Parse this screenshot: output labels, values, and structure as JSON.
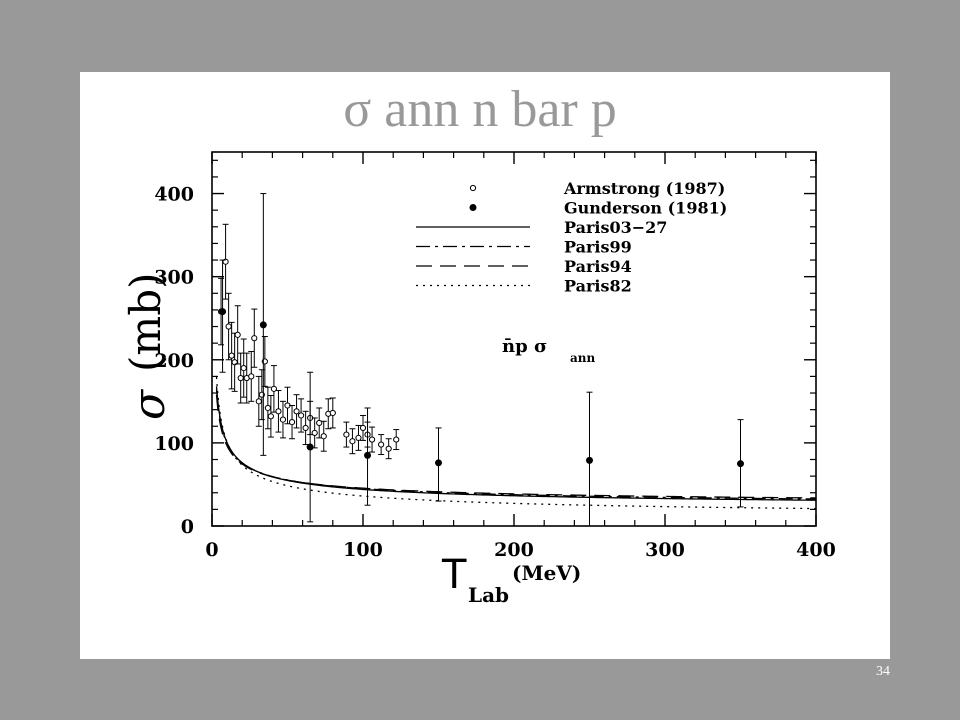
{
  "slide": {
    "title": "σ ann n bar p",
    "number": "34"
  },
  "chart_data": {
    "type": "scatter",
    "xlabel": "T",
    "xlabel_sub": "Lab",
    "xlabel_unit": "(MeV)",
    "ylabel_symbol": "σ",
    "ylabel_unit": "(mb)",
    "xlim": [
      0,
      400
    ],
    "ylim": [
      0,
      450
    ],
    "xticks": [
      0,
      100,
      200,
      300,
      400
    ],
    "yticks": [
      0,
      100,
      200,
      300,
      400
    ],
    "grid": false,
    "legend_position": "top-right",
    "annotation": {
      "main": "n̄p  σ",
      "sub": "ann"
    },
    "series": [
      {
        "name": "Armstrong (1987)",
        "kind": "points",
        "marker": "open-circle",
        "points": [
          {
            "x": 6,
            "y": 258,
            "err": 40
          },
          {
            "x": 9,
            "y": 318,
            "err": 45
          },
          {
            "x": 11,
            "y": 240,
            "err": 40
          },
          {
            "x": 13,
            "y": 205,
            "err": 40
          },
          {
            "x": 15,
            "y": 197,
            "err": 35
          },
          {
            "x": 17,
            "y": 230,
            "err": 35
          },
          {
            "x": 19,
            "y": 178,
            "err": 30
          },
          {
            "x": 21,
            "y": 190,
            "err": 35
          },
          {
            "x": 23,
            "y": 178,
            "err": 30
          },
          {
            "x": 26,
            "y": 180,
            "err": 30
          },
          {
            "x": 28,
            "y": 226,
            "err": 35
          },
          {
            "x": 31,
            "y": 150,
            "err": 30
          },
          {
            "x": 33,
            "y": 158,
            "err": 30
          },
          {
            "x": 35,
            "y": 198,
            "err": 30
          },
          {
            "x": 37,
            "y": 142,
            "err": 25
          },
          {
            "x": 39,
            "y": 132,
            "err": 25
          },
          {
            "x": 41,
            "y": 165,
            "err": 28
          },
          {
            "x": 44,
            "y": 138,
            "err": 25
          },
          {
            "x": 47,
            "y": 128,
            "err": 22
          },
          {
            "x": 50,
            "y": 145,
            "err": 22
          },
          {
            "x": 53,
            "y": 125,
            "err": 20
          },
          {
            "x": 56,
            "y": 138,
            "err": 20
          },
          {
            "x": 59,
            "y": 133,
            "err": 20
          },
          {
            "x": 62,
            "y": 118,
            "err": 20
          },
          {
            "x": 65,
            "y": 130,
            "err": 20
          },
          {
            "x": 68,
            "y": 112,
            "err": 18
          },
          {
            "x": 71,
            "y": 124,
            "err": 18
          },
          {
            "x": 74,
            "y": 108,
            "err": 18
          },
          {
            "x": 77,
            "y": 135,
            "err": 18
          },
          {
            "x": 80,
            "y": 136,
            "err": 18
          },
          {
            "x": 89,
            "y": 110,
            "err": 15
          },
          {
            "x": 93,
            "y": 102,
            "err": 15
          },
          {
            "x": 97,
            "y": 106,
            "err": 15
          },
          {
            "x": 100,
            "y": 118,
            "err": 15
          },
          {
            "x": 103,
            "y": 110,
            "err": 15
          },
          {
            "x": 106,
            "y": 104,
            "err": 15
          },
          {
            "x": 112,
            "y": 98,
            "err": 12
          },
          {
            "x": 117,
            "y": 93,
            "err": 12
          },
          {
            "x": 122,
            "y": 104,
            "err": 12
          }
        ]
      },
      {
        "name": "Gunderson (1981)",
        "kind": "points",
        "marker": "filled-circle",
        "points": [
          {
            "x": 7,
            "y": 258,
            "lo": 185,
            "hi": 320
          },
          {
            "x": 34,
            "y": 242,
            "lo": 85,
            "hi": 400
          },
          {
            "x": 65,
            "y": 95,
            "lo": 5,
            "hi": 185
          },
          {
            "x": 103,
            "y": 85,
            "lo": 25,
            "hi": 142
          },
          {
            "x": 150,
            "y": 76,
            "lo": 30,
            "hi": 118
          },
          {
            "x": 250,
            "y": 79,
            "lo": 0,
            "hi": 161
          },
          {
            "x": 350,
            "y": 75,
            "lo": 23,
            "hi": 128
          }
        ]
      },
      {
        "name": "Paris03−27",
        "kind": "curve",
        "style": "solid",
        "A": 18,
        "B": 26,
        "p": 0.5,
        "xmin": 3
      },
      {
        "name": "Paris99",
        "kind": "curve",
        "style": "dash-dot",
        "A": 20,
        "B": 25,
        "p": 0.5,
        "xmin": 3
      },
      {
        "name": "Paris94",
        "kind": "curve",
        "style": "long-dash",
        "A": 22,
        "B": 23.5,
        "p": 0.5,
        "xmin": 3
      },
      {
        "name": "Paris82",
        "kind": "curve",
        "style": "dotted",
        "A": 6,
        "B": 30,
        "p": 0.5,
        "xmin": 3
      }
    ]
  }
}
